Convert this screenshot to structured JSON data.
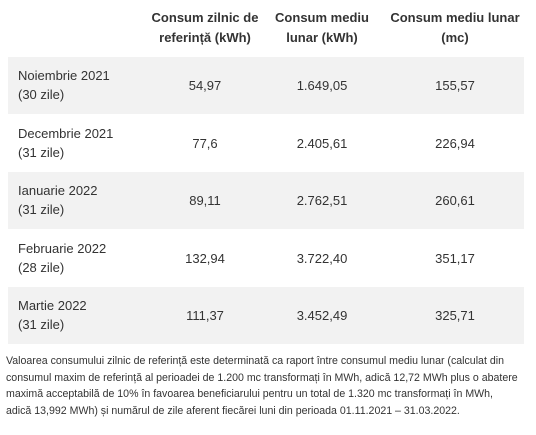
{
  "table": {
    "header": [
      [
        "Consum zilnic de",
        "referință (kWh)"
      ],
      [
        "Consum mediu",
        "lunar (kWh)"
      ],
      [
        "Consum mediu lunar",
        "(mc)"
      ]
    ],
    "rows": [
      {
        "period": "Noiembrie 2021",
        "days": "(30 zile)",
        "values": [
          "54,97",
          "1.649,05",
          "155,57"
        ]
      },
      {
        "period": "Decembrie 2021",
        "days": "(31 zile)",
        "values": [
          "77,6",
          "2.405,61",
          "226,94"
        ]
      },
      {
        "period": "Ianuarie 2022",
        "days": "(31 zile)",
        "values": [
          "89,11",
          "2.762,51",
          "260,61"
        ]
      },
      {
        "period": "Februarie 2022",
        "days": "(28 zile)",
        "values": [
          "132,94",
          "3.722,40",
          "351,17"
        ]
      },
      {
        "period": "Martie 2022",
        "days": "(31 zile)",
        "values": [
          "111,37",
          "3.452,49",
          "325,71"
        ]
      }
    ]
  },
  "footnote": [
    "Valoarea consumului zilnic de referință este determinată ca raport între consumul mediu lunar (calculat din",
    "consumul maxim de referință al perioadei de 1.200 mc transformați în MWh, adică 12,72 MWh plus o abatere",
    "maximă acceptabilă de 10% în favoarea beneficiarului pentru un total de 1.320 mc transformați în MWh,",
    "adică 13,992 MWh) și numărul de zile aferent fiecărei luni din perioada 01.11.2021 – 31.03.2022."
  ]
}
